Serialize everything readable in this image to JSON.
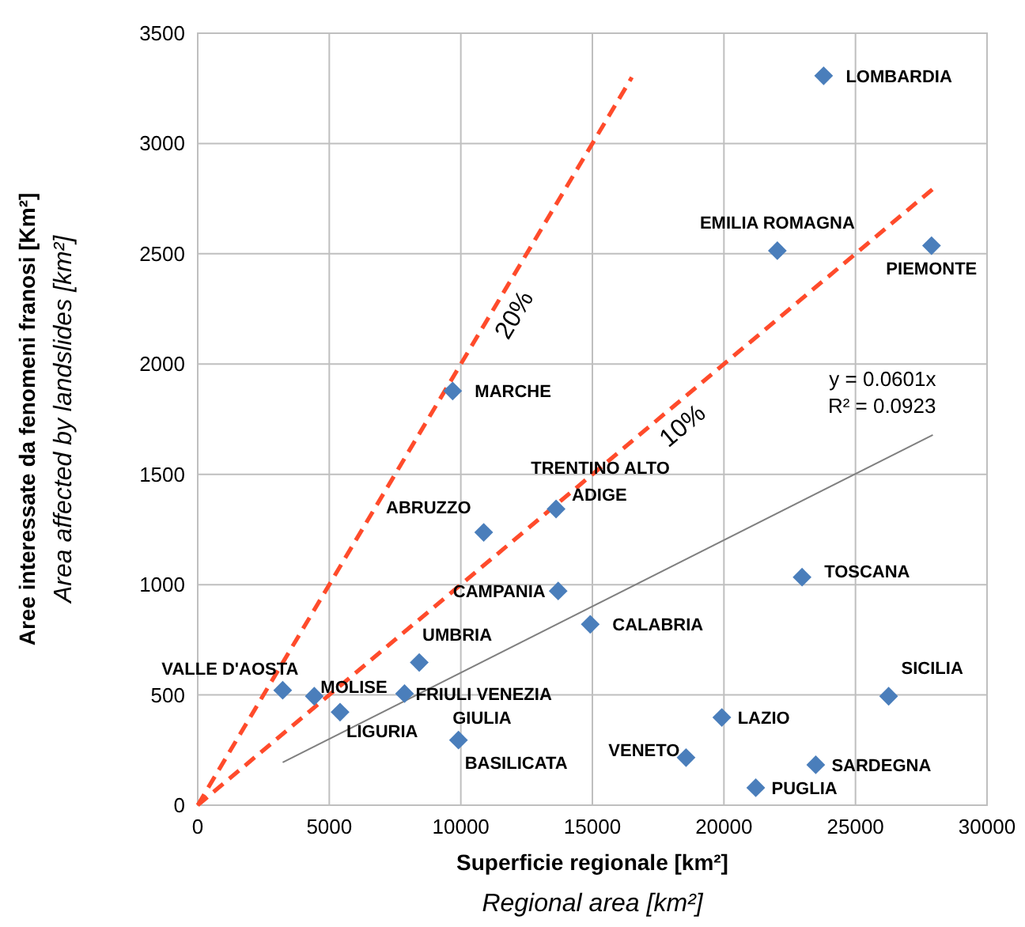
{
  "chart_data": {
    "type": "scatter",
    "xlabel": "Superficie regionale [km²]\nRegional area [km²]",
    "ylabel": "Aree interessate da fenomeni franosi [Km²]\nArea affected by landslides [km²]",
    "xlim": [
      0,
      30000
    ],
    "xticks": [
      0,
      5000,
      10000,
      15000,
      20000,
      25000,
      30000
    ],
    "ylim": [
      0,
      3500
    ],
    "yticks": [
      0,
      500,
      1000,
      1500,
      2000,
      2500,
      3000,
      3500
    ],
    "grid": true,
    "series": [
      {
        "type": "line",
        "x": [
          0,
          16500
        ],
        "values": [
          0,
          3300
        ],
        "color": "#ff4b2b",
        "line_style": "dashed",
        "marker": "none"
      },
      {
        "type": "line",
        "x": [
          0,
          28000
        ],
        "values": [
          0,
          2800
        ],
        "color": "#ff4b2b",
        "line_style": "dashed",
        "marker": "none"
      },
      {
        "type": "line",
        "x": [
          3230,
          27940
        ],
        "values": [
          194,
          1679
        ],
        "color": "#7f7f7f",
        "line_style": "solid",
        "marker": "none"
      },
      {
        "color": "#4a7ebb",
        "marker": "diamond",
        "x": [
          23790,
          22030,
          27890,
          9690,
          13620,
          10870,
          13700,
          22970,
          14920,
          8420,
          3230,
          4430,
          7860,
          5410,
          9910,
          19920,
          26260,
          18560,
          23490,
          21210
        ],
        "values": [
          3307,
          2514,
          2537,
          1878,
          1343,
          1237,
          971,
          1034,
          820,
          647,
          521,
          494,
          506,
          422,
          295,
          398,
          494,
          216,
          183,
          79
        ]
      }
    ],
    "annotations": [
      {
        "text": "LOMBARDIA",
        "x": 23790,
        "y": 3307
      },
      {
        "text": "EMILIA ROMAGNA",
        "x": 22030,
        "y": 2514
      },
      {
        "text": "PIEMONTE",
        "x": 27890,
        "y": 2537
      },
      {
        "text": "MARCHE",
        "x": 9690,
        "y": 1878
      },
      {
        "text": "TRENTINO ALTO ADIGE",
        "x": 13620,
        "y": 1343
      },
      {
        "text": "ABRUZZO",
        "x": 10870,
        "y": 1237
      },
      {
        "text": "CAMPANIA",
        "x": 13700,
        "y": 971
      },
      {
        "text": "TOSCANA",
        "x": 22970,
        "y": 1034
      },
      {
        "text": "CALABRIA",
        "x": 14920,
        "y": 820
      },
      {
        "text": "UMBRIA",
        "x": 8420,
        "y": 647
      },
      {
        "text": "VALLE D'AOSTA",
        "x": 3230,
        "y": 521
      },
      {
        "text": "MOLISE",
        "x": 4430,
        "y": 494
      },
      {
        "text": "FRIULI VENEZIA GIULIA",
        "x": 7860,
        "y": 506
      },
      {
        "text": "LIGURIA",
        "x": 5410,
        "y": 422
      },
      {
        "text": "BASILICATA",
        "x": 9910,
        "y": 295
      },
      {
        "text": "LAZIO",
        "x": 19920,
        "y": 398
      },
      {
        "text": "SICILIA",
        "x": 26260,
        "y": 494
      },
      {
        "text": "VENETO",
        "x": 18560,
        "y": 216
      },
      {
        "text": "SARDEGNA",
        "x": 23490,
        "y": 183
      },
      {
        "text": "PUGLIA",
        "x": 21210,
        "y": 79
      },
      "20%",
      "10%",
      {
        "text": "y = 0.0601x",
        "x": 27940,
        "y": 1679
      },
      {
        "text": "R² = 0.0923",
        "x": 27940,
        "y": 1679
      }
    ]
  }
}
